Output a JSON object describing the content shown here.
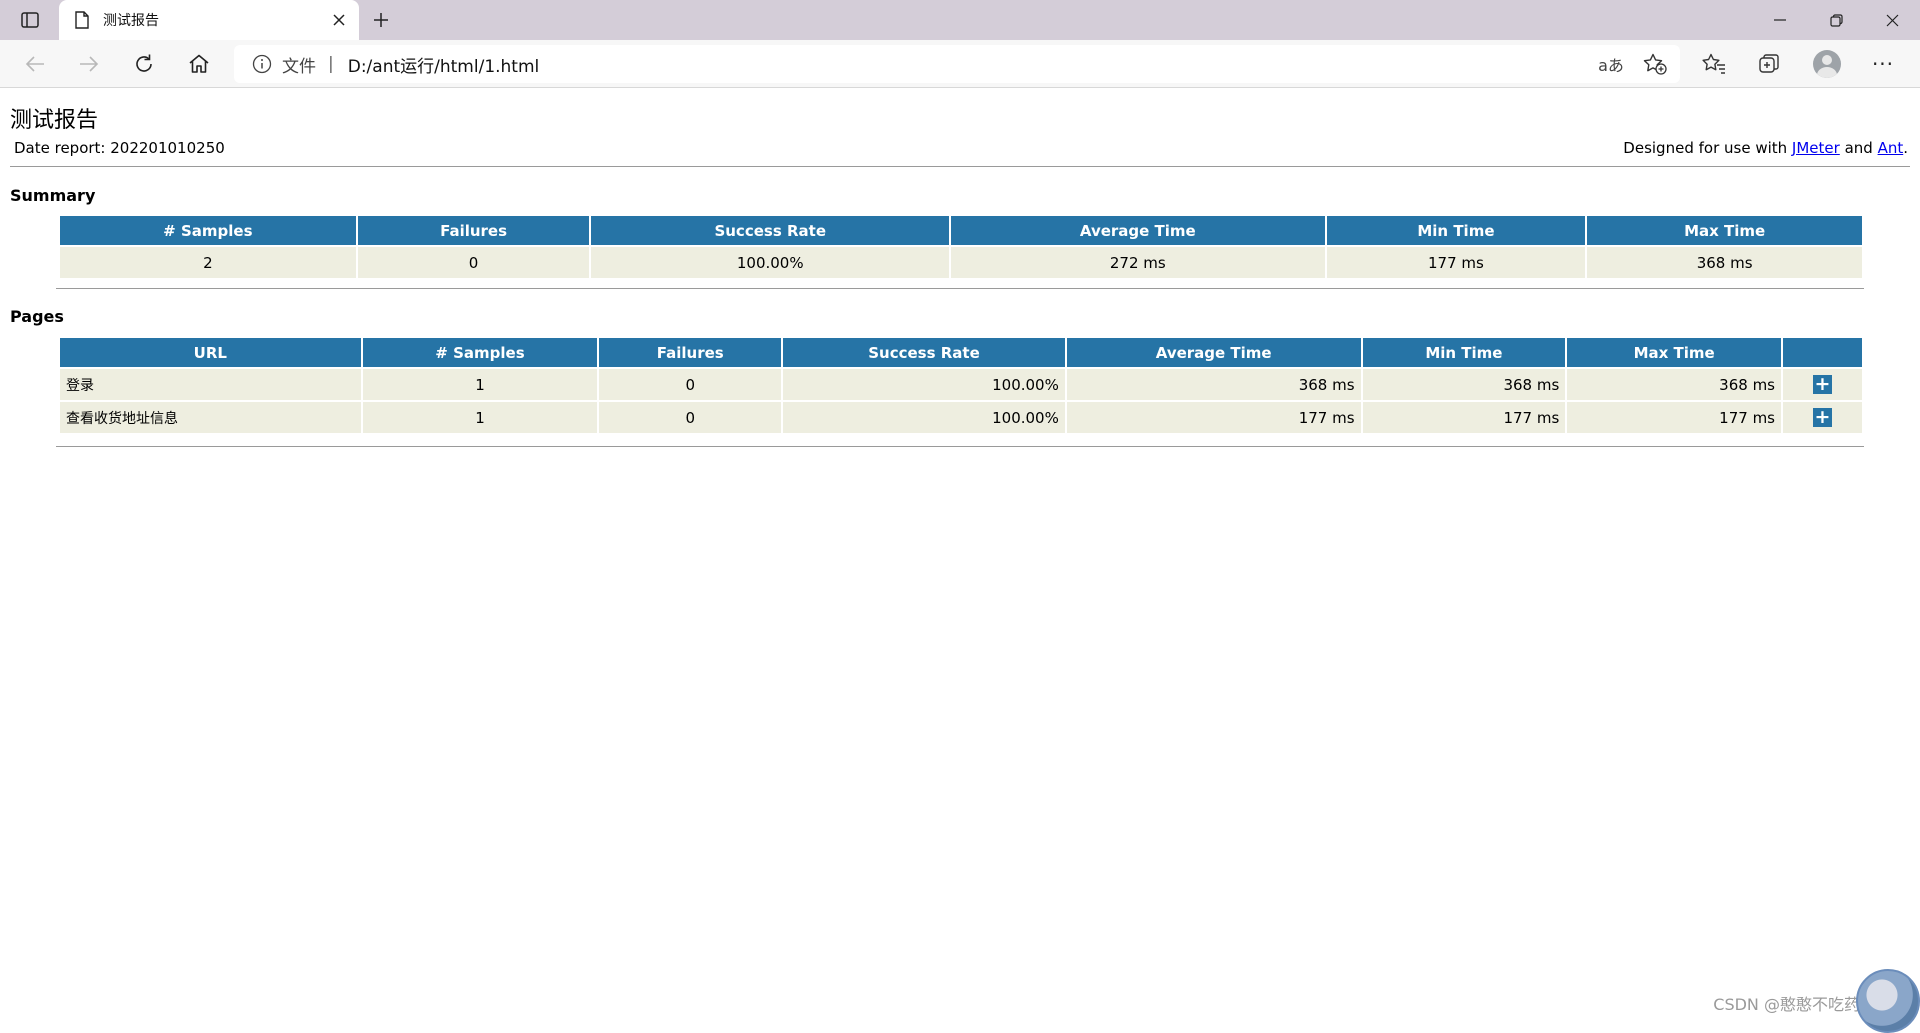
{
  "browser": {
    "tab_title": "测试报告",
    "address_scheme": "文件",
    "address_separator": "|",
    "address_url": "D:/ant运行/html/1.html",
    "read_aloud_glyph": "aあ",
    "more_glyph": "···"
  },
  "report": {
    "title": "测试报告",
    "date_report": "Date report: 202201010250",
    "designed_prefix": "Designed for use with ",
    "designed_link1": "JMeter",
    "designed_and": " and ",
    "designed_link2": "Ant",
    "designed_suffix": "."
  },
  "summary": {
    "heading": "Summary",
    "headers": [
      "# Samples",
      "Failures",
      "Success Rate",
      "Average Time",
      "Min Time",
      "Max Time"
    ],
    "row": [
      "2",
      "0",
      "100.00%",
      "272 ms",
      "177 ms",
      "368 ms"
    ]
  },
  "pages": {
    "heading": "Pages",
    "headers": [
      "URL",
      "# Samples",
      "Failures",
      "Success Rate",
      "Average Time",
      "Min Time",
      "Max Time",
      ""
    ],
    "rows": [
      [
        "登录",
        "1",
        "0",
        "100.00%",
        "368 ms",
        "368 ms",
        "368 ms"
      ],
      [
        "查看收货地址信息",
        "1",
        "0",
        "100.00%",
        "177 ms",
        "177 ms",
        "177 ms"
      ]
    ],
    "expand_glyph": "+"
  },
  "watermark": "CSDN @憨憨不吃药"
}
